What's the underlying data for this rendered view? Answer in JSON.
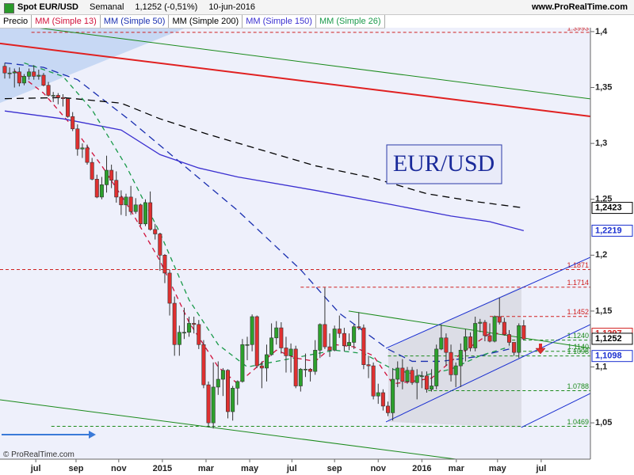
{
  "header": {
    "symbol": "Spot EUR/USD",
    "period": "Semanal",
    "last": "1,1252 (-0,51%)",
    "date": "10-jun-2016",
    "site": "www.ProRealTime.com"
  },
  "footer": "© ProRealTime.com",
  "chart_data": {
    "type": "candlestick",
    "title": "EUR/USD",
    "price_name": "Precio",
    "up_color": "#2ca02c",
    "down_color": "#e03030",
    "xlim": [
      -0.98,
      120.75
    ],
    "ylim": [
      1.0175,
      1.4035
    ],
    "xticks": [
      {
        "value": 6.4,
        "label": "jul"
      },
      {
        "value": 14.7,
        "label": "sep"
      },
      {
        "value": 23.5,
        "label": "nov"
      },
      {
        "value": 32.5,
        "label": "2015"
      },
      {
        "value": 41.5,
        "label": "mar"
      },
      {
        "value": 50.5,
        "label": "may"
      },
      {
        "value": 59.2,
        "label": "jul"
      },
      {
        "value": 68,
        "label": "sep"
      },
      {
        "value": 77,
        "label": "nov"
      },
      {
        "value": 86,
        "label": "2016"
      },
      {
        "value": 93.1,
        "label": "mar"
      },
      {
        "value": 101.6,
        "label": "may"
      },
      {
        "value": 110.6,
        "label": "jul"
      }
    ],
    "yticks": [
      {
        "value": 1.4,
        "label": "1,4"
      },
      {
        "value": 1.35,
        "label": "1,35"
      },
      {
        "value": 1.3,
        "label": "1,3"
      },
      {
        "value": 1.25,
        "label": "1,25"
      },
      {
        "value": 1.2,
        "label": "1,2"
      },
      {
        "value": 1.15,
        "label": "1,15"
      },
      {
        "value": 1.1,
        "label": "1,1"
      },
      {
        "value": 1.05,
        "label": "1,05"
      }
    ],
    "open": [
      1.369,
      1.363,
      1.363,
      1.364,
      1.354,
      1.36,
      1.364,
      1.36,
      1.361,
      1.352,
      1.343,
      1.343,
      1.341,
      1.34,
      1.324,
      1.313,
      1.295,
      1.296,
      1.283,
      1.268,
      1.252,
      1.263,
      1.276,
      1.267,
      1.252,
      1.245,
      1.252,
      1.239,
      1.245,
      1.228,
      1.247,
      1.223,
      1.219,
      1.2,
      1.184,
      1.157,
      1.12,
      1.131,
      1.131,
      1.139,
      1.138,
      1.12,
      1.084,
      1.05,
      1.082,
      1.089,
      1.097,
      1.06,
      1.081,
      1.087,
      1.12,
      1.12,
      1.145,
      1.101,
      1.099,
      1.111,
      1.126,
      1.135,
      1.117,
      1.11,
      1.116,
      1.083,
      1.098,
      1.098,
      1.096,
      1.115,
      1.138,
      1.118,
      1.115,
      1.134,
      1.13,
      1.119,
      1.122,
      1.136,
      1.135,
      1.102,
      1.101,
      1.074,
      1.077,
      1.065,
      1.059,
      1.089,
      1.099,
      1.087,
      1.097,
      1.086,
      1.092,
      1.092,
      1.08,
      1.083,
      1.116,
      1.126,
      1.113,
      1.093,
      1.101,
      1.115,
      1.127,
      1.117,
      1.139,
      1.14,
      1.128,
      1.123,
      1.145,
      1.14,
      1.129,
      1.122,
      1.113,
      1.137
    ],
    "high": [
      1.372,
      1.368,
      1.367,
      1.368,
      1.362,
      1.367,
      1.37,
      1.366,
      1.363,
      1.355,
      1.346,
      1.345,
      1.344,
      1.341,
      1.328,
      1.317,
      1.3,
      1.299,
      1.287,
      1.272,
      1.27,
      1.289,
      1.281,
      1.275,
      1.258,
      1.255,
      1.262,
      1.251,
      1.246,
      1.25,
      1.257,
      1.228,
      1.22,
      1.201,
      1.187,
      1.163,
      1.137,
      1.153,
      1.145,
      1.145,
      1.142,
      1.124,
      1.087,
      1.104,
      1.105,
      1.099,
      1.098,
      1.083,
      1.088,
      1.125,
      1.127,
      1.147,
      1.146,
      1.105,
      1.12,
      1.139,
      1.141,
      1.14,
      1.127,
      1.121,
      1.119,
      1.099,
      1.112,
      1.099,
      1.124,
      1.139,
      1.171,
      1.13,
      1.137,
      1.146,
      1.135,
      1.13,
      1.138,
      1.149,
      1.138,
      1.11,
      1.104,
      1.085,
      1.08,
      1.069,
      1.099,
      1.105,
      1.107,
      1.1,
      1.1,
      1.098,
      1.096,
      1.096,
      1.098,
      1.12,
      1.138,
      1.13,
      1.12,
      1.104,
      1.121,
      1.134,
      1.131,
      1.145,
      1.143,
      1.142,
      1.139,
      1.146,
      1.162,
      1.144,
      1.133,
      1.122,
      1.139,
      1.142
    ],
    "low": [
      1.358,
      1.358,
      1.35,
      1.351,
      1.352,
      1.357,
      1.357,
      1.357,
      1.351,
      1.342,
      1.337,
      1.335,
      1.333,
      1.323,
      1.311,
      1.289,
      1.287,
      1.281,
      1.267,
      1.251,
      1.25,
      1.256,
      1.26,
      1.247,
      1.236,
      1.235,
      1.236,
      1.237,
      1.226,
      1.226,
      1.222,
      1.214,
      1.186,
      1.175,
      1.146,
      1.11,
      1.11,
      1.125,
      1.127,
      1.13,
      1.116,
      1.081,
      1.046,
      1.045,
      1.075,
      1.074,
      1.054,
      1.052,
      1.066,
      1.086,
      1.106,
      1.114,
      1.099,
      1.081,
      1.087,
      1.11,
      1.12,
      1.112,
      1.095,
      1.095,
      1.081,
      1.078,
      1.091,
      1.087,
      1.093,
      1.108,
      1.116,
      1.109,
      1.114,
      1.126,
      1.114,
      1.115,
      1.116,
      1.133,
      1.098,
      1.09,
      1.071,
      1.067,
      1.061,
      1.056,
      1.052,
      1.082,
      1.08,
      1.085,
      1.084,
      1.071,
      1.081,
      1.077,
      1.078,
      1.08,
      1.115,
      1.101,
      1.087,
      1.082,
      1.082,
      1.105,
      1.114,
      1.114,
      1.131,
      1.123,
      1.122,
      1.122,
      1.138,
      1.128,
      1.119,
      1.11,
      1.108,
      1.124
    ],
    "close": [
      1.363,
      1.363,
      1.364,
      1.354,
      1.36,
      1.364,
      1.36,
      1.361,
      1.352,
      1.343,
      1.343,
      1.341,
      1.34,
      1.324,
      1.313,
      1.295,
      1.296,
      1.283,
      1.268,
      1.252,
      1.263,
      1.276,
      1.267,
      1.252,
      1.245,
      1.252,
      1.239,
      1.245,
      1.228,
      1.247,
      1.223,
      1.219,
      1.2,
      1.184,
      1.157,
      1.12,
      1.131,
      1.131,
      1.139,
      1.138,
      1.12,
      1.084,
      1.05,
      1.082,
      1.089,
      1.097,
      1.06,
      1.081,
      1.087,
      1.12,
      1.12,
      1.145,
      1.101,
      1.099,
      1.111,
      1.126,
      1.135,
      1.117,
      1.11,
      1.116,
      1.083,
      1.098,
      1.098,
      1.096,
      1.115,
      1.138,
      1.118,
      1.115,
      1.134,
      1.13,
      1.119,
      1.122,
      1.136,
      1.135,
      1.102,
      1.101,
      1.074,
      1.077,
      1.065,
      1.059,
      1.089,
      1.099,
      1.087,
      1.097,
      1.086,
      1.092,
      1.092,
      1.08,
      1.083,
      1.116,
      1.126,
      1.113,
      1.093,
      1.101,
      1.115,
      1.127,
      1.117,
      1.139,
      1.14,
      1.128,
      1.123,
      1.145,
      1.14,
      1.129,
      1.122,
      1.113,
      1.137,
      1.125
    ],
    "series": [
      {
        "name": "MM (Simple 13)",
        "color": "#d0103a",
        "dash": "6,5",
        "x": [
          2,
          8,
          14,
          20,
          26,
          32,
          38,
          44,
          48,
          52,
          56,
          60,
          64,
          68,
          72,
          76,
          80,
          84,
          88,
          92,
          96,
          100,
          104
        ],
        "values": [
          1.365,
          1.345,
          1.315,
          1.28,
          1.24,
          1.195,
          1.14,
          1.1,
          1.085,
          1.1,
          1.115,
          1.108,
          1.105,
          1.12,
          1.118,
          1.11,
          1.085,
          1.087,
          1.09,
          1.105,
          1.118,
          1.13,
          1.13
        ]
      },
      {
        "name": "MM (Simple 50)",
        "color": "#1a2fb0",
        "dash": "9,6",
        "x": [
          0,
          8,
          15,
          26,
          37,
          48,
          61,
          69,
          79,
          84,
          90,
          97,
          104
        ],
        "values": [
          1.372,
          1.368,
          1.357,
          1.32,
          1.28,
          1.24,
          1.187,
          1.148,
          1.116,
          1.105,
          1.105,
          1.109,
          1.116
        ]
      },
      {
        "name": "MM (Simple 200)",
        "color": "#000000",
        "dash": "9,6",
        "x": [
          0,
          12,
          24,
          32,
          42,
          53,
          64,
          76,
          87,
          97,
          107
        ],
        "values": [
          1.34,
          1.341,
          1.336,
          1.322,
          1.308,
          1.294,
          1.28,
          1.269,
          1.255,
          1.248,
          1.2423
        ]
      },
      {
        "name": "MM (Simple 150)",
        "color": "#3a2fd0",
        "dash": "",
        "x": [
          0,
          12,
          24,
          32,
          40,
          48,
          64,
          80,
          92,
          100,
          107
        ],
        "values": [
          1.329,
          1.322,
          1.312,
          1.29,
          1.278,
          1.27,
          1.258,
          1.245,
          1.235,
          1.23,
          1.2219
        ]
      },
      {
        "name": "MM (Simple 26)",
        "color": "#1a9a4a",
        "dash": "6,5",
        "x": [
          4,
          12,
          18,
          25,
          32,
          38,
          44,
          50,
          56,
          62,
          68,
          74,
          80,
          86,
          92,
          98,
          104
        ],
        "values": [
          1.372,
          1.36,
          1.33,
          1.28,
          1.22,
          1.16,
          1.12,
          1.1,
          1.105,
          1.11,
          1.115,
          1.112,
          1.098,
          1.092,
          1.098,
          1.11,
          1.118
        ]
      }
    ],
    "trendlines": [
      {
        "color": "#1a8a1a",
        "width": 1,
        "x": [
          3.9,
          120.75
        ],
        "values": [
          1.405,
          1.3398
        ]
      },
      {
        "color": "#e02020",
        "width": 2,
        "x": [
          -0.98,
          120.75
        ],
        "values": [
          1.3894,
          1.3242
        ]
      },
      {
        "color": "#1a8a1a",
        "width": 1,
        "x": [
          -0.98,
          93
        ],
        "values": [
          1.0706,
          1.0175
        ]
      },
      {
        "color": "#1a8a1a",
        "width": 1,
        "x": [
          70.9,
          120.75
        ],
        "values": [
          1.15,
          1.1167
        ]
      },
      {
        "color": "#1a2fd0",
        "width": 1,
        "x": [
          78.6,
          120.75
        ],
        "values": [
          1.1167,
          1.1981
        ]
      },
      {
        "color": "#1a2fd0",
        "width": 1,
        "x": [
          78.6,
          120.75
        ],
        "values": [
          1.0508,
          1.1379
        ]
      },
      {
        "color": "#1a2fd0",
        "width": 1,
        "x": [
          106.5,
          120.75
        ],
        "values": [
          1.0459,
          1.0763
        ]
      }
    ],
    "levels": [
      {
        "value": 1.3993,
        "label": "1.3993",
        "color": "#d02020",
        "from": 5.5
      },
      {
        "value": 1.1871,
        "label": "1.1871",
        "color": "#d02020",
        "from": -0.98
      },
      {
        "value": 1.1714,
        "label": "1.1714",
        "color": "#d02020",
        "from": 61
      },
      {
        "value": 1.1452,
        "label": "1.1452",
        "color": "#d02020",
        "from": 100
      },
      {
        "value": 1.124,
        "label": "1.1240",
        "color": "#1a8a1a",
        "from": 104.6
      },
      {
        "value": 1.114,
        "label": "1.1140",
        "color": "#1a8a1a",
        "from": 104.6
      },
      {
        "value": 1.1098,
        "label": "1.1098",
        "color": "#1a8a1a",
        "from": 79
      },
      {
        "value": 1.0788,
        "label": "1.0788",
        "color": "#1a8a1a",
        "from": 87.3
      },
      {
        "value": 1.0469,
        "label": "1.0469",
        "color": "#1a8a1a",
        "from": 9.6
      }
    ],
    "price_tags": [
      {
        "value": 1.2423,
        "label": "1,2423",
        "color": "#000000"
      },
      {
        "value": 1.2219,
        "label": "1,2219",
        "color": "#1a2fd0"
      },
      {
        "value": 1.1297,
        "label": "1,1297",
        "color": "#d02020"
      },
      {
        "value": 1.1252,
        "label": "1,1252",
        "color": "#000000"
      },
      {
        "value": 1.1098,
        "label": "1,1098",
        "color": "#1a2fd0"
      }
    ]
  }
}
